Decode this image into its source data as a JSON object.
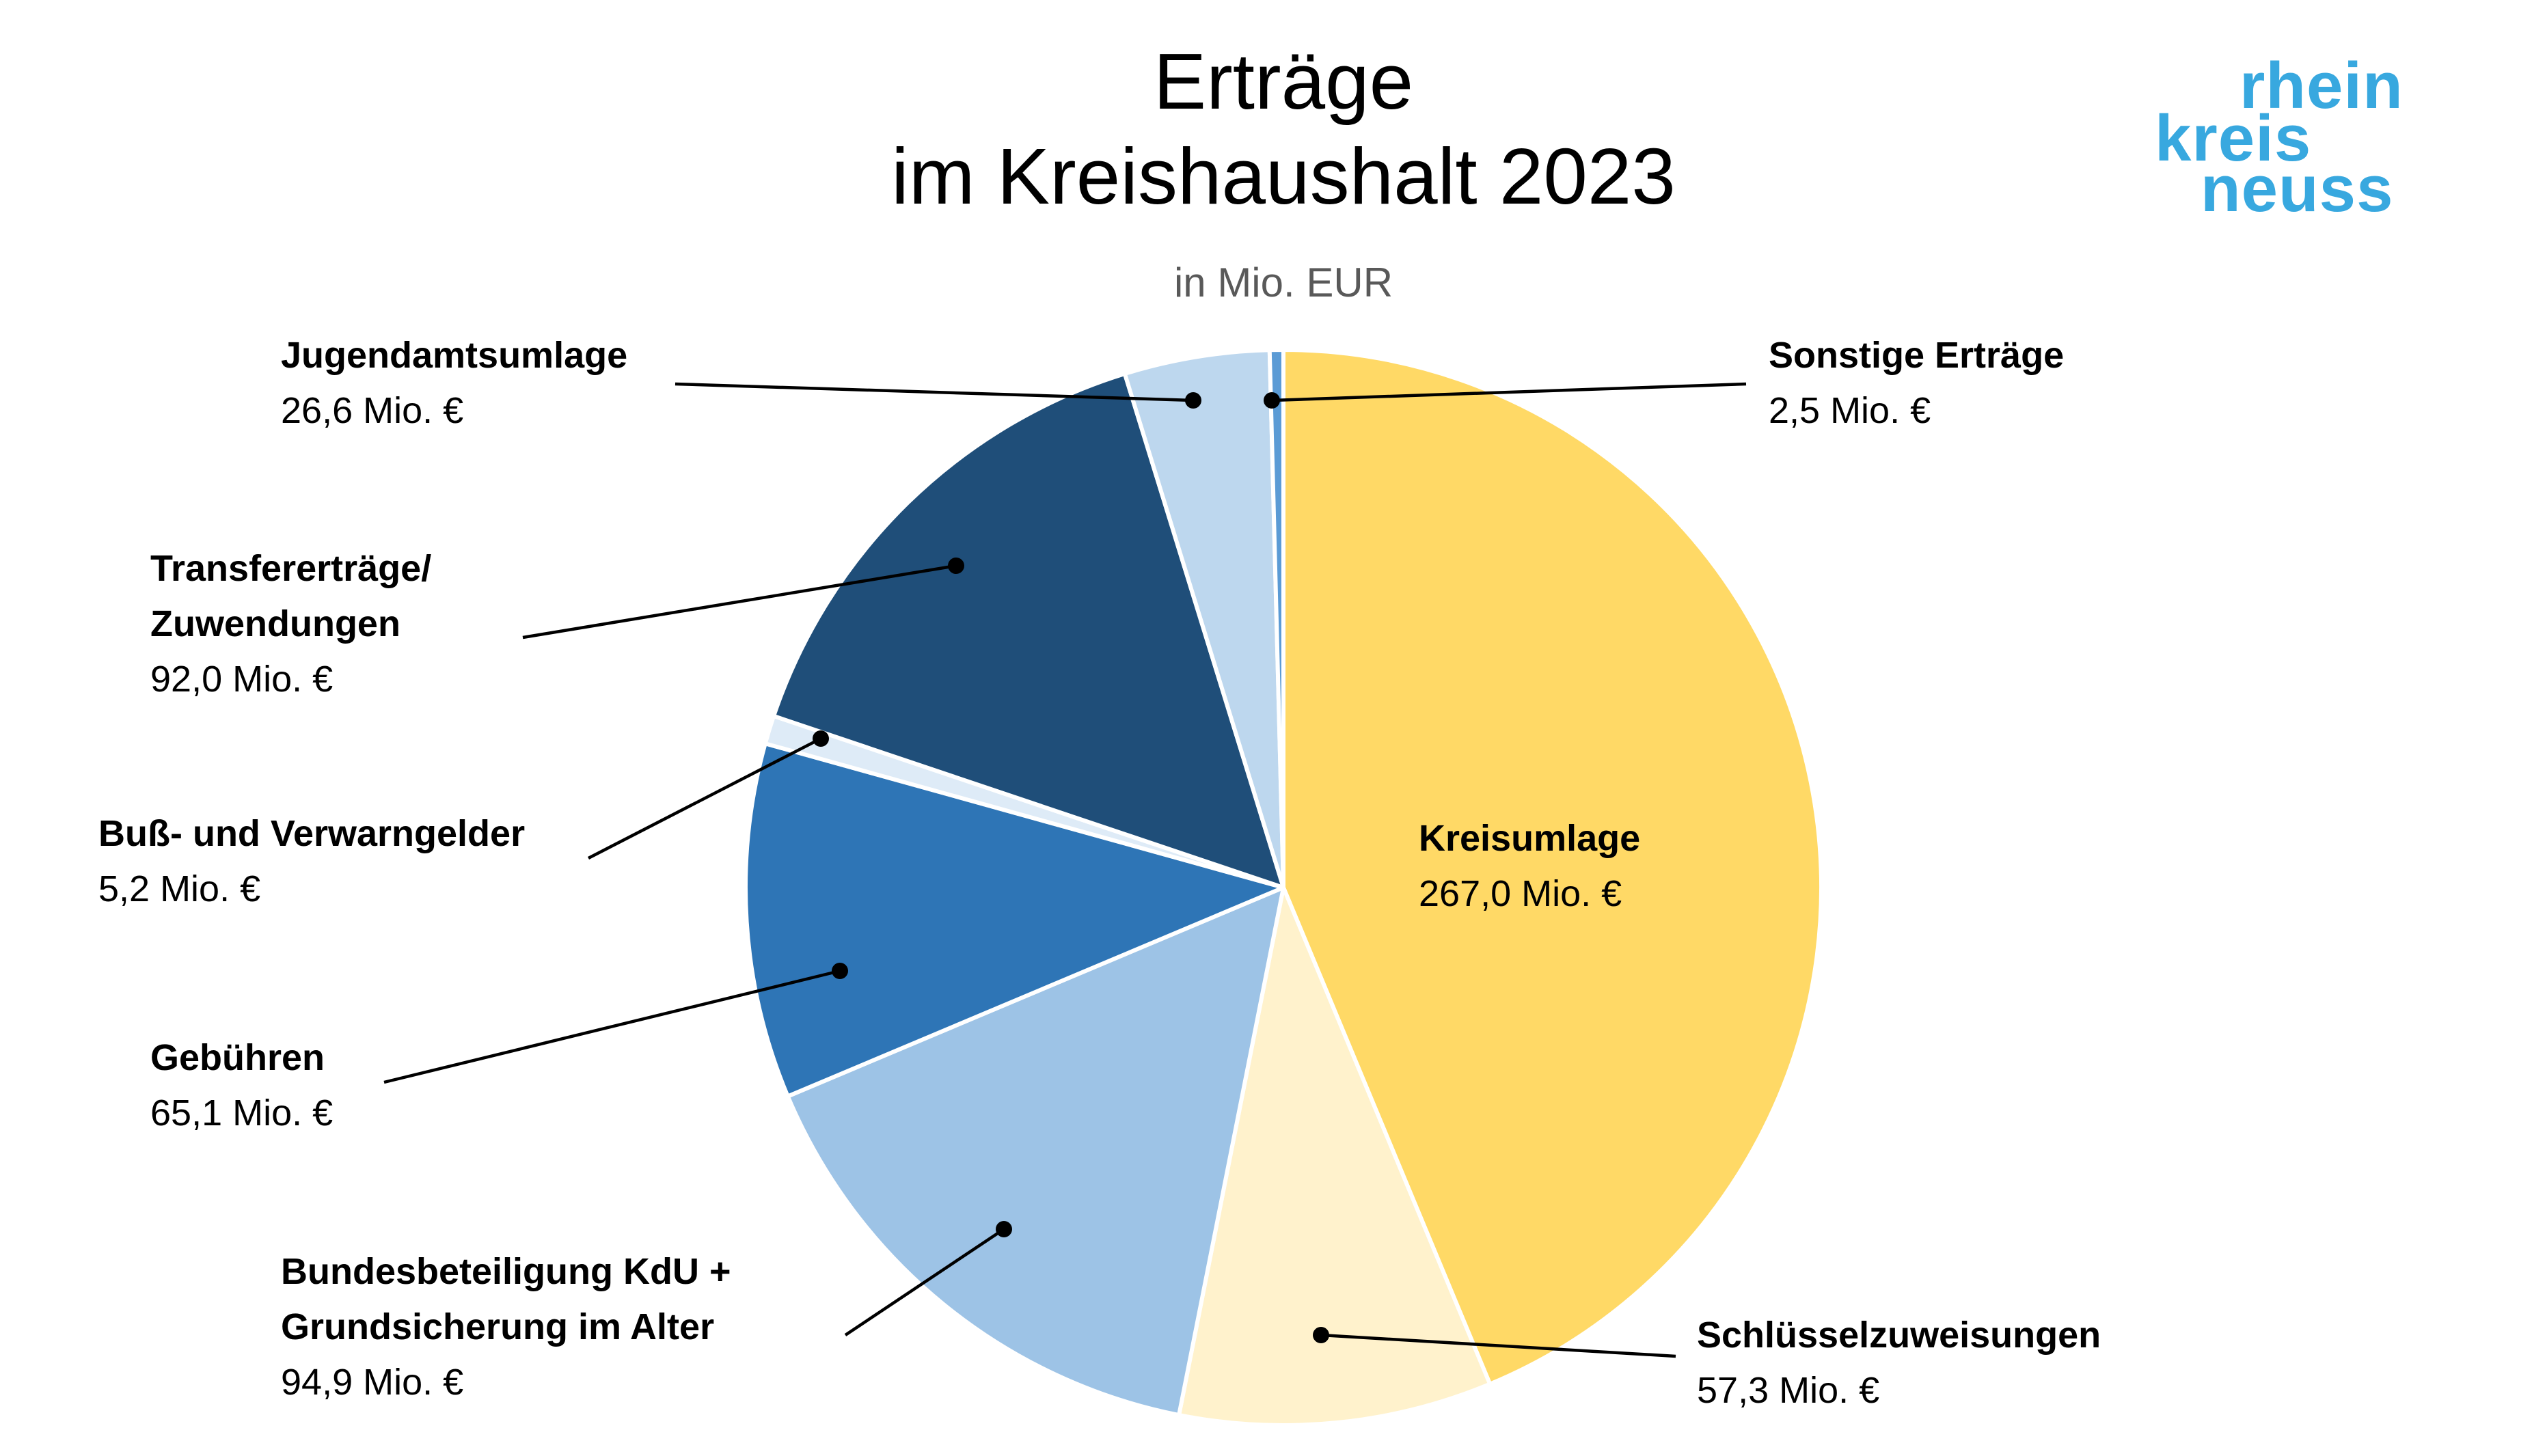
{
  "chart_data": {
    "type": "pie",
    "title": "Erträge\nim Kreishaushalt 2023",
    "subtitle": "in Mio. EUR",
    "categories": [
      "Kreisumlage",
      "Schlüsselzuweisungen",
      "Bundesbeteiligung KdU +\nGrundsicherung im Alter",
      "Gebühren",
      "Buß- und Verwarngelder",
      "Transfererträge/\nZuwendungen",
      "Jugendamtsumlage",
      "Sonstige Erträge"
    ],
    "values": [
      267.0,
      57.3,
      94.9,
      65.1,
      5.2,
      92.0,
      26.6,
      2.5
    ],
    "data_labels": [
      "267,0 Mio. €",
      "57,3 Mio. €",
      "94,9 Mio. €",
      "65,1 Mio. €",
      "5,2 Mio. €",
      "92,0 Mio. €",
      "26,6 Mio. €",
      "2,5 Mio. €"
    ],
    "colors": [
      "#FFD966",
      "#FFF2CC",
      "#9DC3E6",
      "#2E75B6",
      "#DEEBF7",
      "#1F4E79",
      "#BDD7EE",
      "#5B9BD5"
    ],
    "legend": "none"
  },
  "logo": {
    "lines": [
      "rhein",
      "kreis",
      "neuss"
    ],
    "color": "#38A8DF"
  }
}
